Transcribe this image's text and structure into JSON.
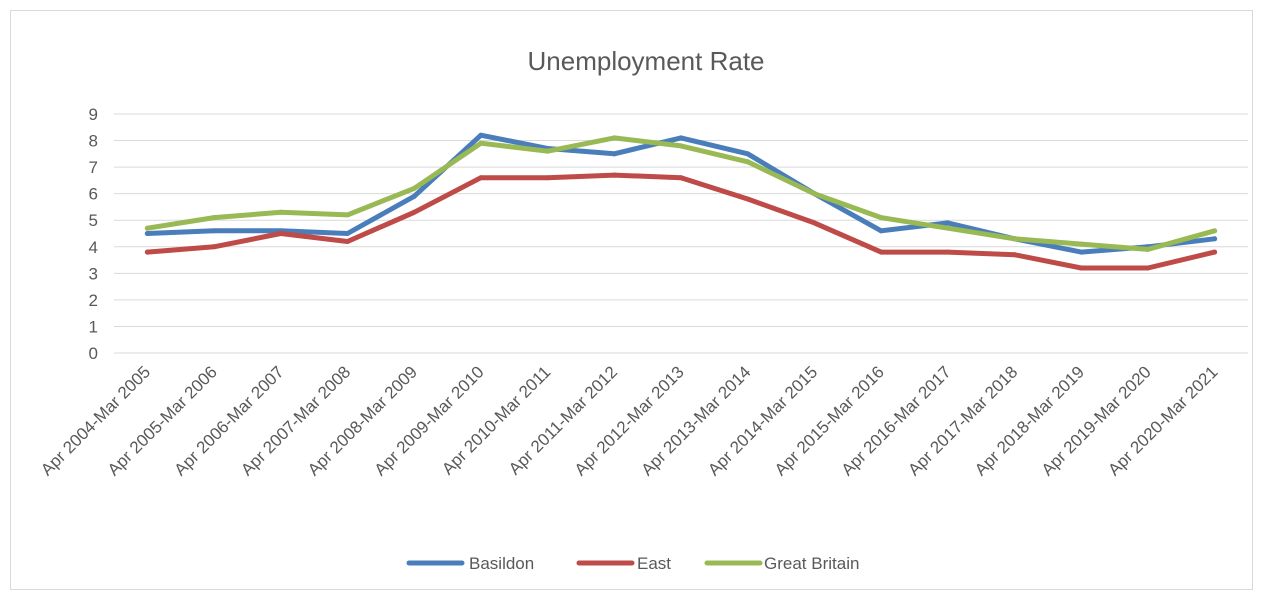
{
  "chart_data": {
    "type": "line",
    "title": "Unemployment Rate",
    "xlabel": "",
    "ylabel": "",
    "ylim": [
      0,
      9
    ],
    "yticks": [
      "0",
      "1",
      "2",
      "3",
      "4",
      "5",
      "6",
      "7",
      "8",
      "9"
    ],
    "grid": true,
    "legend_position": "bottom",
    "categories": [
      "Apr 2004-Mar 2005",
      "Apr 2005-Mar 2006",
      "Apr 2006-Mar 2007",
      "Apr 2007-Mar 2008",
      "Apr 2008-Mar 2009",
      "Apr 2009-Mar 2010",
      "Apr 2010-Mar 2011",
      "Apr 2011-Mar 2012",
      "Apr 2012-Mar 2013",
      "Apr 2013-Mar 2014",
      "Apr 2014-Mar 2015",
      "Apr 2015-Mar 2016",
      "Apr 2016-Mar 2017",
      "Apr 2017-Mar 2018",
      "Apr 2018-Mar 2019",
      "Apr 2019-Mar 2020",
      "Apr 2020-Mar 2021"
    ],
    "series": [
      {
        "name": "Basildon",
        "color": "#4a7ebb",
        "values": [
          4.5,
          4.6,
          4.6,
          4.5,
          5.9,
          8.2,
          7.7,
          7.5,
          8.1,
          7.5,
          6.0,
          4.6,
          4.9,
          4.3,
          3.8,
          4.0,
          4.3
        ]
      },
      {
        "name": "East",
        "color": "#be4b48",
        "values": [
          3.8,
          4.0,
          4.5,
          4.2,
          5.3,
          6.6,
          6.6,
          6.7,
          6.6,
          5.8,
          4.9,
          3.8,
          3.8,
          3.7,
          3.2,
          3.2,
          3.8
        ]
      },
      {
        "name": "Great Britain",
        "color": "#98b954",
        "values": [
          4.7,
          5.1,
          5.3,
          5.2,
          6.2,
          7.9,
          7.6,
          8.1,
          7.8,
          7.2,
          6.0,
          5.1,
          4.7,
          4.3,
          4.1,
          3.9,
          4.6
        ]
      }
    ]
  }
}
